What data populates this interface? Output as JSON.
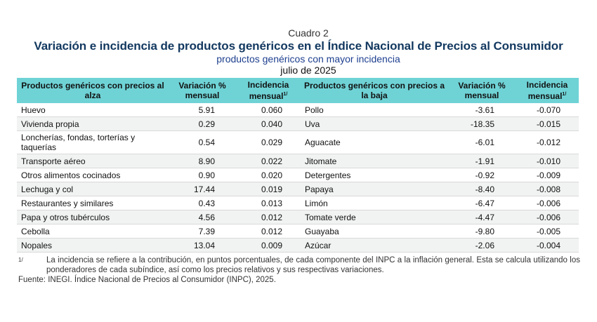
{
  "header": {
    "cuadro": "Cuadro 2",
    "title": "Variación e incidencia de productos genéricos en el Índice Nacional de Precios al Consumidor",
    "subtitle": "productos genéricos con mayor incidencia",
    "period": "julio de 2025"
  },
  "table": {
    "columns": {
      "up_product": "Productos genéricos con precios al alza",
      "up_var": "Variación % mensual",
      "up_inc": "Incidencia mensual",
      "down_product": "Productos genéricos con precios a la baja",
      "down_var": "Variación % mensual",
      "down_inc": "Incidencia mensual",
      "footnote_mark": "1/"
    },
    "rows": [
      {
        "up_product": "Huevo",
        "up_var": "5.91",
        "up_inc": "0.060",
        "down_product": "Pollo",
        "down_var": "-3.61",
        "down_inc": "-0.070"
      },
      {
        "up_product": "Vivienda propia",
        "up_var": "0.29",
        "up_inc": "0.040",
        "down_product": "Uva",
        "down_var": "-18.35",
        "down_inc": "-0.015"
      },
      {
        "up_product": "Loncherías, fondas, torterías y taquerías",
        "up_var": "0.54",
        "up_inc": "0.029",
        "down_product": "Aguacate",
        "down_var": "-6.01",
        "down_inc": "-0.012"
      },
      {
        "up_product": "Transporte aéreo",
        "up_var": "8.90",
        "up_inc": "0.022",
        "down_product": "Jitomate",
        "down_var": "-1.91",
        "down_inc": "-0.010"
      },
      {
        "up_product": "Otros alimentos cocinados",
        "up_var": "0.90",
        "up_inc": "0.020",
        "down_product": "Detergentes",
        "down_var": "-0.92",
        "down_inc": "-0.009"
      },
      {
        "up_product": "Lechuga y col",
        "up_var": "17.44",
        "up_inc": "0.019",
        "down_product": "Papaya",
        "down_var": "-8.40",
        "down_inc": "-0.008"
      },
      {
        "up_product": "Restaurantes y similares",
        "up_var": "0.43",
        "up_inc": "0.013",
        "down_product": "Limón",
        "down_var": "-6.47",
        "down_inc": "-0.006"
      },
      {
        "up_product": "Papa y otros tubérculos",
        "up_var": "4.56",
        "up_inc": "0.012",
        "down_product": "Tomate verde",
        "down_var": "-4.47",
        "down_inc": "-0.006"
      },
      {
        "up_product": "Cebolla",
        "up_var": "7.39",
        "up_inc": "0.012",
        "down_product": "Guayaba",
        "down_var": "-9.80",
        "down_inc": "-0.005"
      },
      {
        "up_product": "Nopales",
        "up_var": "13.04",
        "up_inc": "0.009",
        "down_product": "Azúcar",
        "down_var": "-2.06",
        "down_inc": "-0.004"
      }
    ]
  },
  "footnote": {
    "mark": "1/",
    "text": "La incidencia se refiere a la contribución, en puntos porcentuales, de cada componente del INPC a la inflación general. Esta se calcula utilizando los ponderadores de cada subíndice, así como los precios relativos y sus respectivas variaciones."
  },
  "source": "Fuente: INEGI. Índice Nacional de Precios al Consumidor (INPC), 2025.",
  "colors": {
    "header_fill": "#6fd3d6",
    "title": "#12385f",
    "subtitle": "#1d3f8f",
    "row_stripe": "#f1f2f2"
  }
}
